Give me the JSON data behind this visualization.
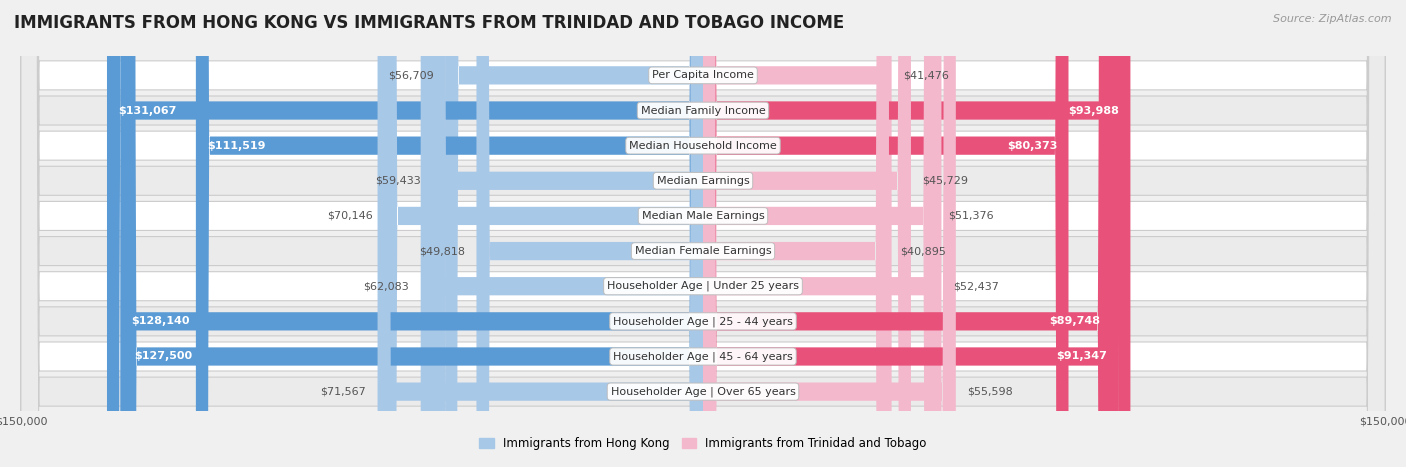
{
  "title": "IMMIGRANTS FROM HONG KONG VS IMMIGRANTS FROM TRINIDAD AND TOBAGO INCOME",
  "source": "Source: ZipAtlas.com",
  "categories": [
    "Per Capita Income",
    "Median Family Income",
    "Median Household Income",
    "Median Earnings",
    "Median Male Earnings",
    "Median Female Earnings",
    "Householder Age | Under 25 years",
    "Householder Age | 25 - 44 years",
    "Householder Age | 45 - 64 years",
    "Householder Age | Over 65 years"
  ],
  "hk_values": [
    56709,
    131067,
    111519,
    59433,
    70146,
    49818,
    62083,
    128140,
    127500,
    71567
  ],
  "tt_values": [
    41476,
    93988,
    80373,
    45729,
    51376,
    40895,
    52437,
    89748,
    91347,
    55598
  ],
  "hk_color_light": "#a8c8e8",
  "hk_color_strong": "#5b9bd5",
  "tt_color_light": "#f4b8cc",
  "tt_color_strong": "#e8527a",
  "max_value": 150000,
  "bg_color": "#f0f0f0",
  "row_color_light": "#ffffff",
  "row_color_dark": "#ebebeb",
  "row_border_color": "#cccccc",
  "legend_hk": "Immigrants from Hong Kong",
  "legend_tt": "Immigrants from Trinidad and Tobago",
  "title_fontsize": 12,
  "source_fontsize": 8,
  "bar_label_fontsize": 8,
  "cat_label_fontsize": 8,
  "axis_fontsize": 8
}
